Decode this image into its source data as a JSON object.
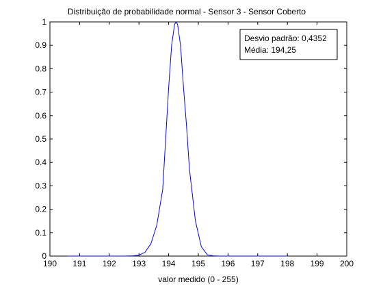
{
  "chart_data": {
    "type": "line",
    "title": "Distribuição de probabilidade normal - Sensor 3 - Sensor Coberto",
    "xlabel": "valor medido (0 - 255)",
    "ylabel": "",
    "xlim": [
      190,
      200
    ],
    "ylim": [
      0,
      1
    ],
    "x_ticks": [
      190,
      191,
      192,
      193,
      194,
      195,
      196,
      197,
      198,
      199,
      200
    ],
    "y_ticks": [
      0,
      0.1,
      0.2,
      0.3,
      0.4,
      0.5,
      0.6,
      0.7,
      0.8,
      0.9,
      1
    ],
    "x_tick_labels": [
      "190",
      "191",
      "192",
      "193",
      "194",
      "195",
      "196",
      "197",
      "198",
      "199",
      "200"
    ],
    "y_tick_labels": [
      "0",
      "0.1",
      "0.2",
      "0.3",
      "0.4",
      "0.5",
      "0.6",
      "0.7",
      "0.8",
      "0.9",
      "1"
    ],
    "grid": false,
    "legend_placement": "top-right",
    "annotation": {
      "lines": [
        "Desvio padrão: 0,4352",
        "Média: 194,25"
      ]
    },
    "series": [
      {
        "color": "#0000ff",
        "x_range": [
          190.6,
          198
        ],
        "x": [
          190.6,
          192.0,
          192.5,
          192.8,
          193.0,
          193.2,
          193.4,
          193.6,
          193.8,
          194.0,
          194.1,
          194.2,
          194.25,
          194.3,
          194.4,
          194.5,
          194.6,
          194.7,
          194.9,
          195.1,
          195.3,
          195.5,
          195.7,
          196.0,
          196.5,
          198.0
        ],
        "y": [
          0.0,
          0.0,
          0.0,
          0.001,
          0.004,
          0.016,
          0.052,
          0.132,
          0.285,
          0.72,
          0.9,
          0.99,
          1.0,
          0.99,
          0.9,
          0.72,
          0.56,
          0.372,
          0.151,
          0.04,
          0.006,
          0.001,
          0.0,
          0.0,
          0.0,
          0.0
        ]
      }
    ]
  }
}
